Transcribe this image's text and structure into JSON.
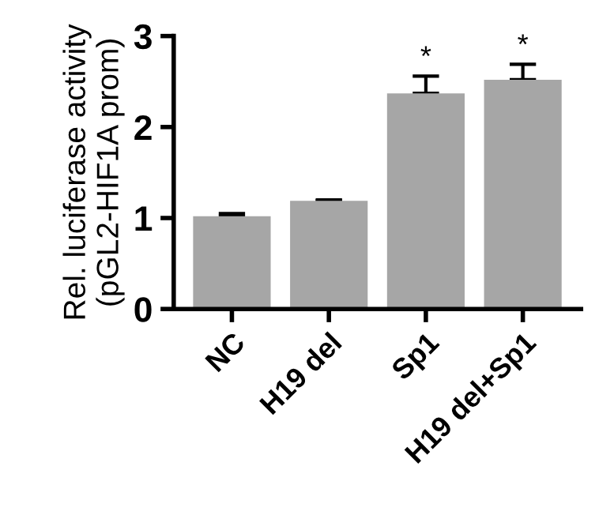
{
  "chart_data": {
    "type": "bar",
    "ylabel": "Rel. luciferase activity\n(pGL2-HIF1A prom)",
    "categories": [
      "NC",
      "H19 del",
      "Sp1",
      "H19 del+Sp1"
    ],
    "series": [
      {
        "color": "#a6a6a6",
        "values": [
          1.02,
          1.19,
          2.37,
          2.52
        ],
        "errors": [
          [
            1.02,
            1.05
          ],
          [
            1.19,
            1.2
          ],
          [
            2.37,
            2.56
          ],
          [
            2.52,
            2.69
          ]
        ]
      }
    ],
    "annotations": [
      {
        "text": "*",
        "x": "Sp1",
        "y": 2.56
      },
      {
        "text": "*",
        "x": "H19 del+Sp1",
        "y": 2.69
      }
    ],
    "ylim": [
      0,
      3
    ],
    "yticks": [
      0,
      1,
      2,
      3
    ],
    "grid": false,
    "legend": false
  }
}
